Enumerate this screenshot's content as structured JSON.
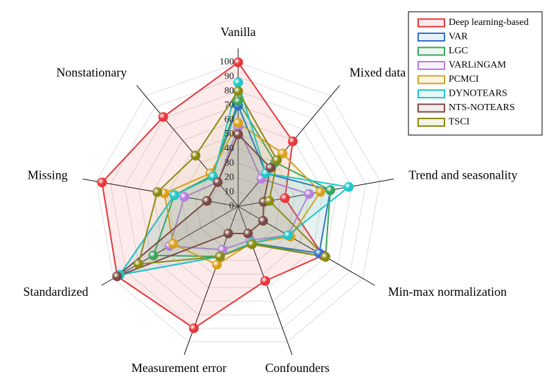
{
  "chart_data": {
    "type": "radar",
    "categories": [
      "Vanilla",
      "Mixed data",
      "Trend and seasonality",
      "Min-max normalization",
      "Confounders",
      "Measurement error",
      "Standardized",
      "Missing",
      "Nonstationary"
    ],
    "rlim": [
      0,
      100
    ],
    "rticks": [
      0,
      10,
      20,
      30,
      40,
      50,
      60,
      70,
      80,
      90,
      100
    ],
    "grid": true,
    "legend": "upper right",
    "series": [
      {
        "name": "Deep learning-based",
        "color": "#e8363a",
        "values": [
          100,
          59,
          33,
          68,
          55,
          90,
          97,
          96,
          81
        ]
      },
      {
        "name": "VAR",
        "color": "#2f6fcf",
        "values": [
          70,
          30,
          65,
          65,
          27,
          37,
          95,
          45,
          28
        ]
      },
      {
        "name": "LGC",
        "color": "#3aa55c",
        "values": [
          73,
          40,
          65,
          70,
          27,
          37,
          68,
          45,
          28
        ]
      },
      {
        "name": "VARLiNGAM",
        "color": "#b57fdc",
        "values": [
          55,
          25,
          50,
          40,
          25,
          32,
          55,
          38,
          22
        ]
      },
      {
        "name": "PCMCI",
        "color": "#d9a21b",
        "values": [
          58,
          48,
          58,
          42,
          27,
          43,
          52,
          52,
          30
        ]
      },
      {
        "name": "DYNOTEARS",
        "color": "#1fc7c9",
        "values": [
          86,
          30,
          78,
          40,
          27,
          37,
          95,
          45,
          27
        ]
      },
      {
        "name": "NTS-NOTEARS",
        "color": "#7b4a44",
        "values": [
          50,
          35,
          18,
          20,
          20,
          20,
          97,
          22,
          22
        ]
      },
      {
        "name": "TSCI",
        "color": "#8a8a12",
        "values": [
          80,
          42,
          22,
          70,
          28,
          37,
          80,
          57,
          46
        ]
      }
    ]
  }
}
